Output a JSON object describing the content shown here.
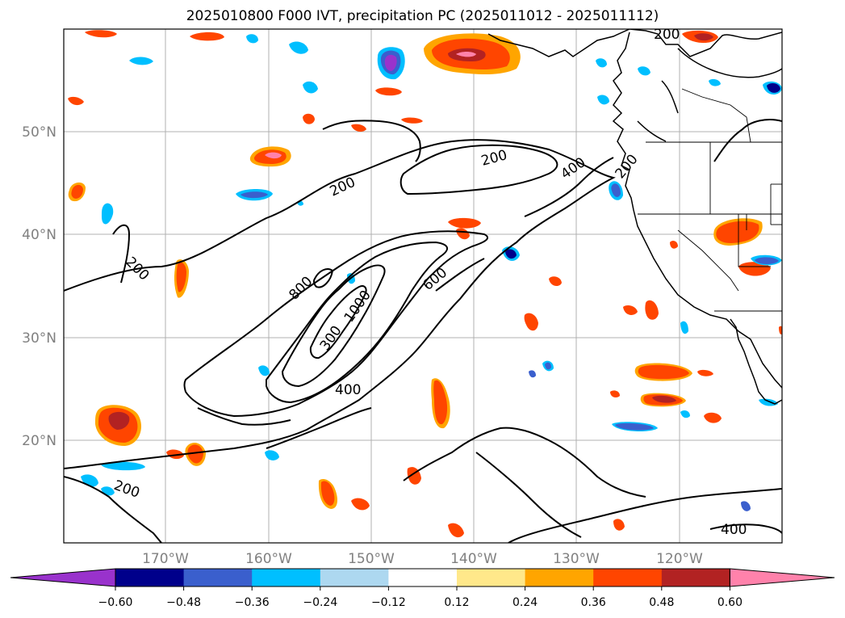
{
  "title": "2025010800 F000 IVT, precipitation PC (2025011012 - 2025011112)",
  "map": {
    "lat_labels": [
      "50°N",
      "40°N",
      "30°N",
      "20°N"
    ],
    "lon_labels": [
      "170°W",
      "160°W",
      "150°W",
      "140°W",
      "130°W",
      "120°W"
    ],
    "ivt_contour_labels": [
      "200",
      "200",
      "200",
      "200",
      "200",
      "200",
      "400",
      "400",
      "400",
      "600",
      "800",
      "1000",
      "300"
    ],
    "colors": {
      "contour": "#000000",
      "grid": "#b0b0b0",
      "land_border": "#000000"
    }
  },
  "colorbar": {
    "tick_labels": [
      "−0.60",
      "−0.48",
      "−0.36",
      "−0.24",
      "−0.12",
      "0.12",
      "0.24",
      "0.36",
      "0.48",
      "0.60"
    ],
    "colors": [
      "#9932cc",
      "#00008b",
      "#3a5fcd",
      "#00bfff",
      "#add8f0",
      "#ffffff",
      "#ffe88a",
      "#ffa500",
      "#ff4500",
      "#b22222",
      "#ff82ab"
    ]
  }
}
